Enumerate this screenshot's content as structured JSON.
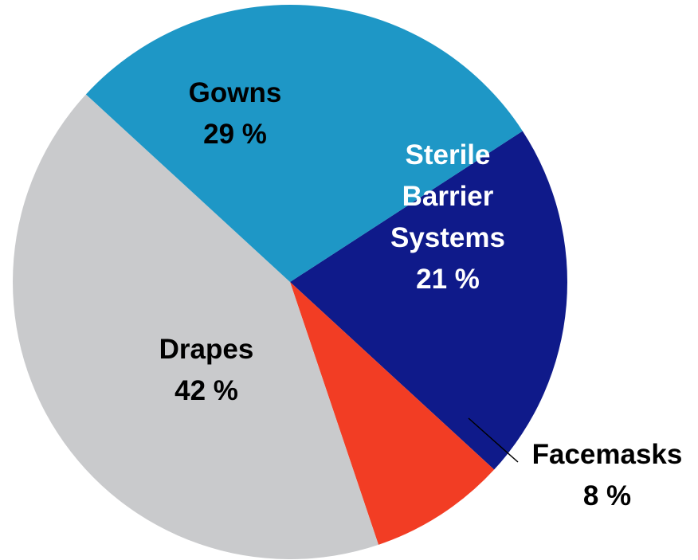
{
  "chart_data": {
    "type": "pie",
    "title": "",
    "legend": "none",
    "slices": [
      {
        "label_lines": [
          "Sterile",
          "Barrier",
          "Systems"
        ],
        "value": 21,
        "value_label": "21 %",
        "color": "#0f1a8a",
        "label_color": "#ffffff",
        "label_placement": "inside"
      },
      {
        "label_lines": [
          "Facemasks"
        ],
        "value": 8,
        "value_label": "8 %",
        "color": "#f23d24",
        "label_color": "#000000",
        "label_placement": "outside-with-leader"
      },
      {
        "label_lines": [
          "Drapes"
        ],
        "value": 42,
        "value_label": "42 %",
        "color": "#c9cacc",
        "label_color": "#000000",
        "label_placement": "inside"
      },
      {
        "label_lines": [
          "Gowns"
        ],
        "value": 29,
        "value_label": "29 %",
        "color": "#1e97c6",
        "label_color": "#000000",
        "label_placement": "inside"
      }
    ]
  }
}
